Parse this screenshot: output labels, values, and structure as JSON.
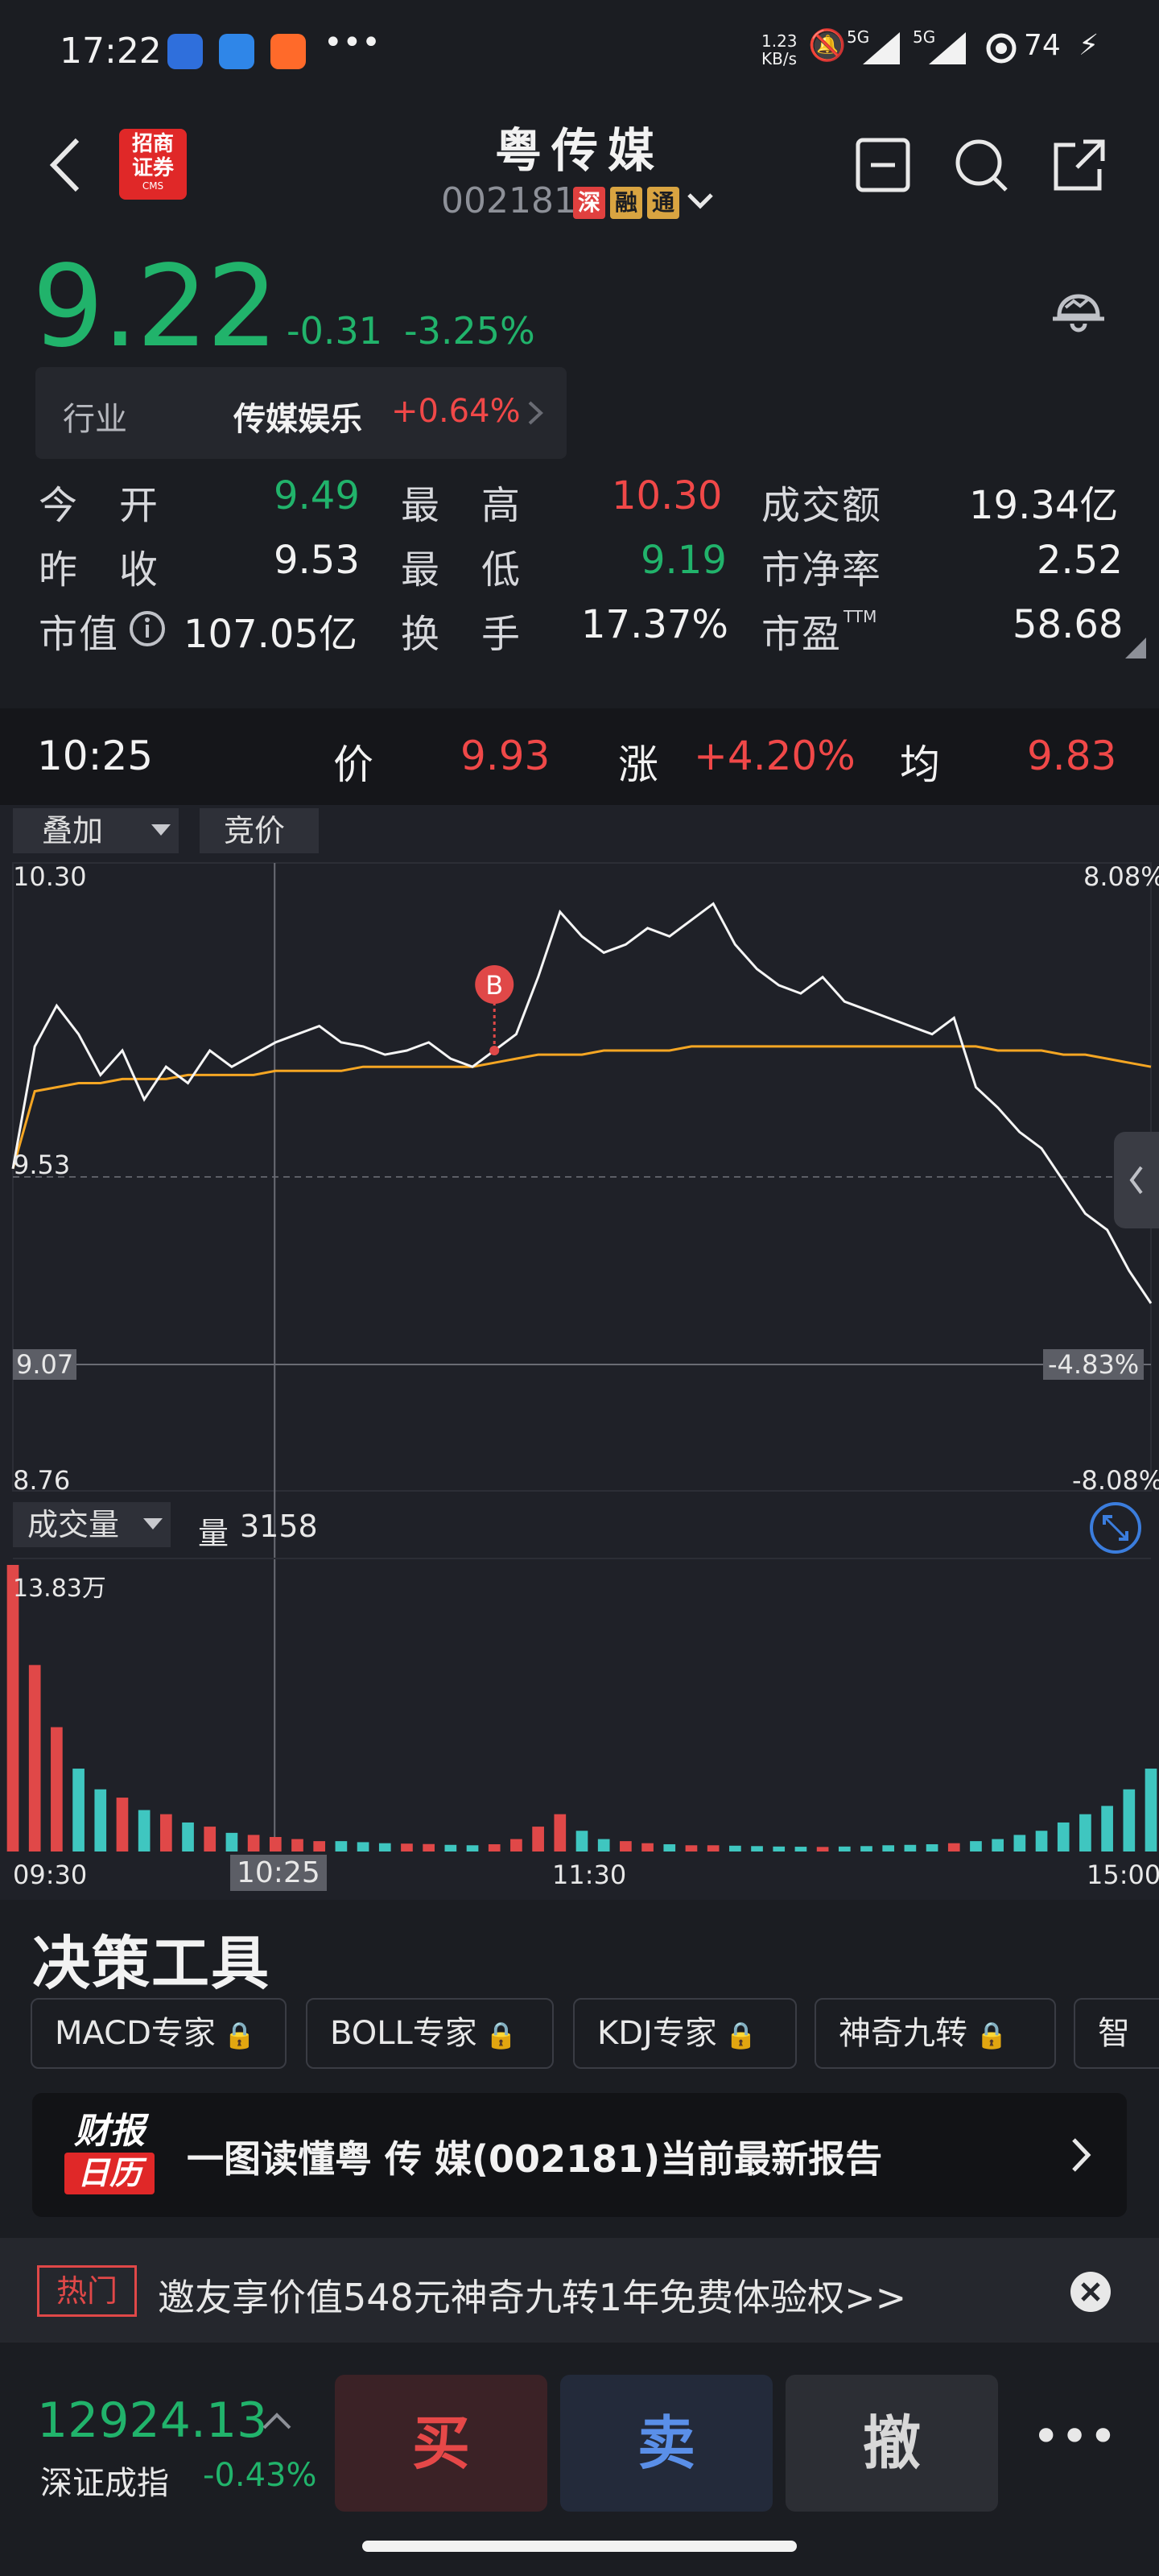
{
  "status": {
    "time": "17:22",
    "net_speed_top": "1.23",
    "net_speed_unit": "KB/s",
    "signal1": "5G",
    "signal2": "5G",
    "battery": "74"
  },
  "header": {
    "broker_logo_line1": "招商",
    "broker_logo_line2": "证券",
    "broker_logo_line3": "CMS",
    "title": "粤传媒",
    "code": "002181",
    "tag1": "深",
    "tag2": "融",
    "tag3": "通"
  },
  "quote": {
    "price": "9.22",
    "change": "-0.31",
    "change_pct": "-3.25%"
  },
  "industry": {
    "label": "行业",
    "name": "传媒娱乐",
    "change": "+0.64%"
  },
  "stats": [
    {
      "label": "今　开",
      "value": "9.49",
      "color": "#21b36b"
    },
    {
      "label": "最　高",
      "value": "10.30",
      "color": "#f04848"
    },
    {
      "label": "成交额",
      "value": "19.34亿",
      "color": "#f2f2f2"
    },
    {
      "label": "昨　收",
      "value": "9.53",
      "color": "#f2f2f2"
    },
    {
      "label": "最　低",
      "value": "9.19",
      "color": "#21b36b"
    },
    {
      "label": "市净率",
      "value": "2.52",
      "color": "#f2f2f2"
    },
    {
      "label": "市值",
      "value": "107.05亿",
      "color": "#f2f2f2"
    },
    {
      "label": "换　手",
      "value": "17.37%",
      "color": "#f2f2f2"
    },
    {
      "label": "市盈",
      "value": "58.68",
      "color": "#f2f2f2"
    }
  ],
  "pe_suffix": "TTM",
  "cursor_info": {
    "time": "10:25",
    "price_label": "价",
    "price": "9.93",
    "rise_label": "涨",
    "rise": "+4.20%",
    "avg_label": "均",
    "avg": "9.83"
  },
  "chart_controls": {
    "overlay": "叠加",
    "auction": "竞价",
    "volume_menu": "成交量",
    "volume_label": "量",
    "volume_value": "3158"
  },
  "chart_data": {
    "type": "line",
    "price_high_label": "10.30",
    "price_mid_label": "9.53",
    "price_low_label": "8.76",
    "pct_high_label": "8.08%",
    "pct_low_label": "-8.08%",
    "crosshair_price": "9.07",
    "crosshair_pct": "-4.83%",
    "vol_max_label": "13.83万",
    "x_ticks": [
      "09:30",
      "10:25",
      "11:30",
      "15:00"
    ],
    "ylim": [
      8.76,
      10.3
    ],
    "prev_close": 9.53,
    "trade_marker": "B",
    "series": [
      {
        "values": [
          9.55,
          9.85,
          9.95,
          9.88,
          9.78,
          9.84,
          9.72,
          9.8,
          9.76,
          9.84,
          9.8,
          9.83,
          9.86,
          9.88,
          9.9,
          9.86,
          9.85,
          9.83,
          9.84,
          9.86,
          9.82,
          9.8,
          9.84,
          9.88,
          10.02,
          10.18,
          10.12,
          10.08,
          10.1,
          10.14,
          10.12,
          10.16,
          10.2,
          10.1,
          10.04,
          10.0,
          9.98,
          10.02,
          9.96,
          9.94,
          9.92,
          9.9,
          9.88,
          9.92,
          9.75,
          9.7,
          9.64,
          9.6,
          9.52,
          9.44,
          9.4,
          9.3,
          9.22
        ]
      },
      {
        "values": [
          9.55,
          9.74,
          9.75,
          9.76,
          9.76,
          9.77,
          9.77,
          9.77,
          9.78,
          9.78,
          9.78,
          9.78,
          9.79,
          9.79,
          9.79,
          9.79,
          9.8,
          9.8,
          9.8,
          9.8,
          9.8,
          9.8,
          9.81,
          9.82,
          9.83,
          9.83,
          9.83,
          9.84,
          9.84,
          9.84,
          9.84,
          9.85,
          9.85,
          9.85,
          9.85,
          9.85,
          9.85,
          9.85,
          9.85,
          9.85,
          9.85,
          9.85,
          9.85,
          9.85,
          9.85,
          9.84,
          9.84,
          9.84,
          9.83,
          9.83,
          9.82,
          9.81,
          9.8
        ]
      }
    ],
    "volume": [
      138300,
      90000,
      60000,
      40000,
      30000,
      26000,
      20000,
      18000,
      14000,
      12000,
      9000,
      8000,
      7000,
      6000,
      5000,
      5000,
      4500,
      4000,
      3800,
      3600,
      3200,
      3000,
      3500,
      6000,
      12000,
      18000,
      10000,
      6000,
      5000,
      4000,
      3500,
      3000,
      3000,
      2800,
      2600,
      2400,
      2300,
      2200,
      2400,
      2600,
      3000,
      3200,
      3500,
      4000,
      5000,
      6000,
      8000,
      10000,
      14000,
      18000,
      22000,
      30000,
      40000
    ]
  },
  "tools": {
    "title": "决策工具",
    "chips": [
      "MACD专家",
      "BOLL专家",
      "KDJ专家",
      "神奇九转",
      "智能"
    ]
  },
  "report": {
    "logo_top": "财报",
    "logo_bottom": "日历",
    "text": "一图读懂粤 传 媒(002181)当前最新报告"
  },
  "hot": {
    "badge": "热门",
    "text": "邀友享价值548元神奇九转1年免费体验权>>"
  },
  "bottom": {
    "index_value": "12924.13",
    "index_name": "深证成指",
    "index_pct": "-0.43%",
    "buy": "买",
    "sell": "卖",
    "cancel": "撤"
  }
}
